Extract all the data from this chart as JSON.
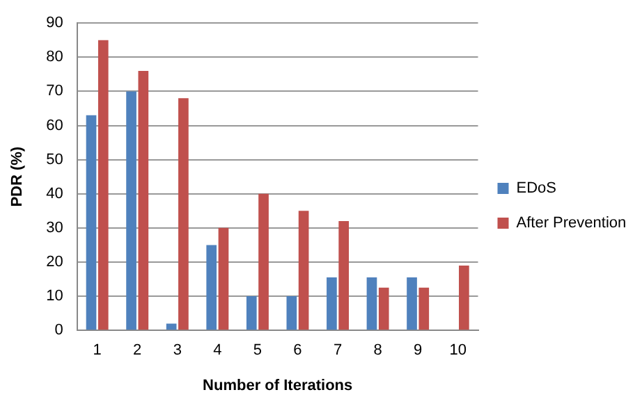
{
  "chart_data": {
    "type": "bar",
    "xlabel": "Number of Iterations",
    "ylabel": "PDR (%)",
    "categories": [
      "1",
      "2",
      "3",
      "4",
      "5",
      "6",
      "7",
      "8",
      "9",
      "10"
    ],
    "series": [
      {
        "name": "EDoS",
        "color": "#4f81bd",
        "values": [
          63,
          70,
          2,
          25,
          10,
          10,
          15.5,
          15.5,
          15.5,
          null
        ]
      },
      {
        "name": "After Prevention",
        "color": "#c0504d",
        "values": [
          85,
          76,
          68,
          30,
          40,
          35,
          32,
          12.5,
          12.5,
          19
        ]
      }
    ],
    "ylim": [
      0,
      90
    ],
    "yticks": [
      0,
      10,
      20,
      30,
      40,
      50,
      60,
      70,
      80,
      90
    ],
    "grid": "y",
    "legend": "right"
  }
}
